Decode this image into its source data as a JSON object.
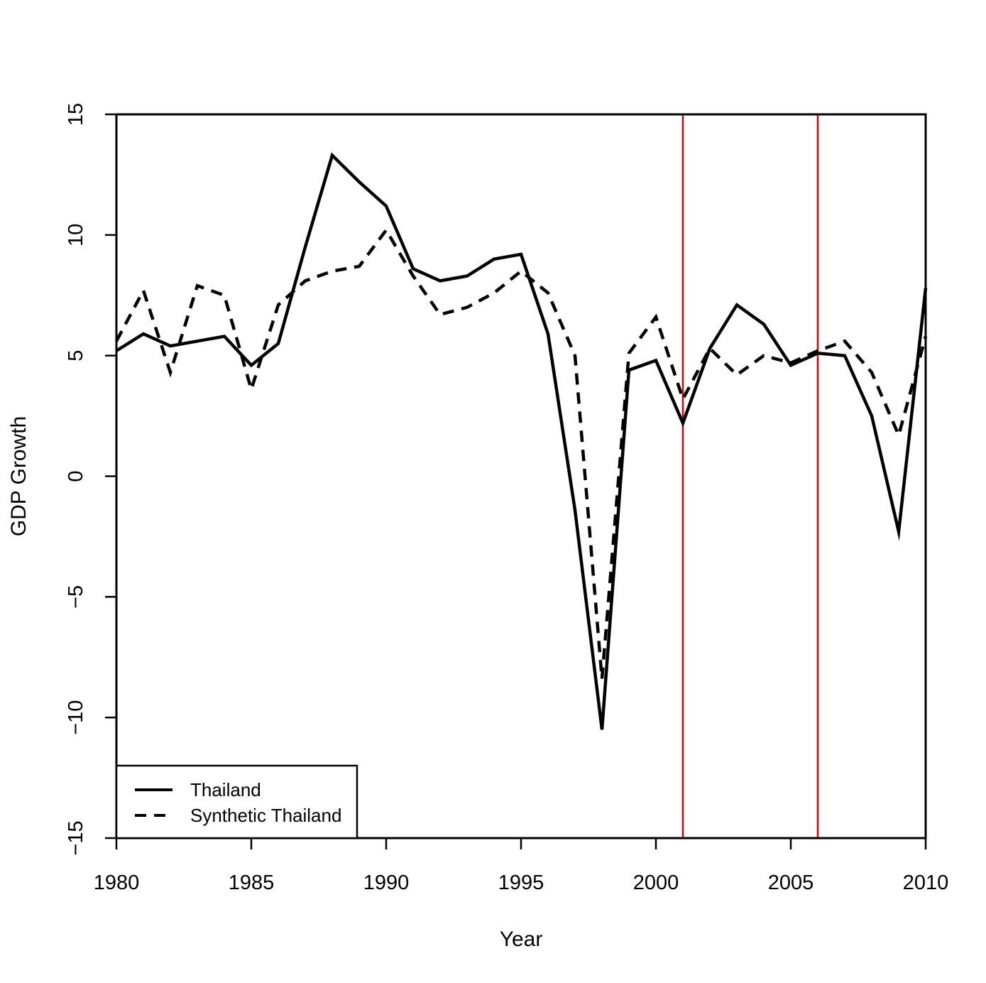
{
  "chart_data": {
    "type": "line",
    "title": "",
    "xlabel": "Year",
    "ylabel": "GDP Growth",
    "xlim": [
      1980,
      2010
    ],
    "ylim": [
      -15,
      15
    ],
    "x_ticks": [
      1980,
      1985,
      1990,
      1995,
      2000,
      2005,
      2010
    ],
    "y_ticks": [
      -15,
      -10,
      -5,
      0,
      5,
      10,
      15
    ],
    "grid": false,
    "legend_position": "bottom-left",
    "x": [
      1980,
      1981,
      1982,
      1983,
      1984,
      1985,
      1986,
      1987,
      1988,
      1989,
      1990,
      1991,
      1992,
      1993,
      1994,
      1995,
      1996,
      1997,
      1998,
      1999,
      2000,
      2001,
      2002,
      2003,
      2004,
      2005,
      2006,
      2007,
      2008,
      2009,
      2010
    ],
    "series": [
      {
        "name": "Thailand",
        "style": "solid",
        "color": "#000000",
        "values": [
          5.2,
          5.9,
          5.4,
          5.6,
          5.8,
          4.6,
          5.5,
          9.5,
          13.3,
          12.2,
          11.2,
          8.6,
          8.1,
          8.3,
          9.0,
          9.2,
          5.9,
          -1.4,
          -10.5,
          4.4,
          4.8,
          2.2,
          5.3,
          7.1,
          6.3,
          4.6,
          5.1,
          5.0,
          2.5,
          -2.3,
          7.8
        ]
      },
      {
        "name": "Synthetic Thailand",
        "style": "dashed",
        "color": "#000000",
        "values": [
          5.6,
          7.7,
          4.3,
          7.9,
          7.5,
          3.6,
          7.1,
          8.1,
          8.5,
          8.7,
          10.2,
          8.3,
          6.7,
          7.0,
          7.6,
          8.5,
          7.6,
          5.0,
          -8.4,
          5.1,
          6.6,
          3.2,
          5.3,
          4.2,
          5.0,
          4.7,
          5.2,
          5.6,
          4.3,
          1.7,
          5.8
        ]
      }
    ],
    "reference_lines": {
      "color": "#e00000",
      "x": [
        2001,
        2006
      ]
    }
  }
}
